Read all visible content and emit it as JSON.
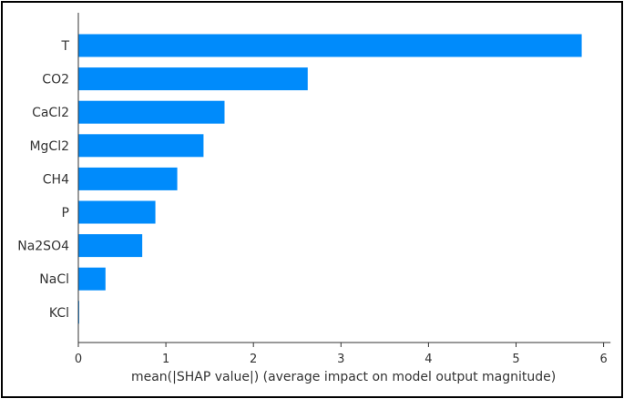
{
  "chart_data": {
    "type": "bar",
    "orientation": "horizontal",
    "title": "",
    "xlabel": "mean(|SHAP value|) (average impact on model output magnitude)",
    "ylabel": "",
    "categories": [
      "T",
      "CO2",
      "CaCl2",
      "MgCl2",
      "CH4",
      "P",
      "Na2SO4",
      "NaCl",
      "KCl"
    ],
    "values": [
      5.75,
      2.62,
      1.67,
      1.43,
      1.13,
      0.88,
      0.73,
      0.31,
      0.01
    ],
    "xlim": [
      0,
      6.1
    ],
    "xticks": [
      "0",
      "1",
      "2",
      "3",
      "4",
      "5",
      "6"
    ],
    "grid": false,
    "bar_color": "#008bfb"
  }
}
